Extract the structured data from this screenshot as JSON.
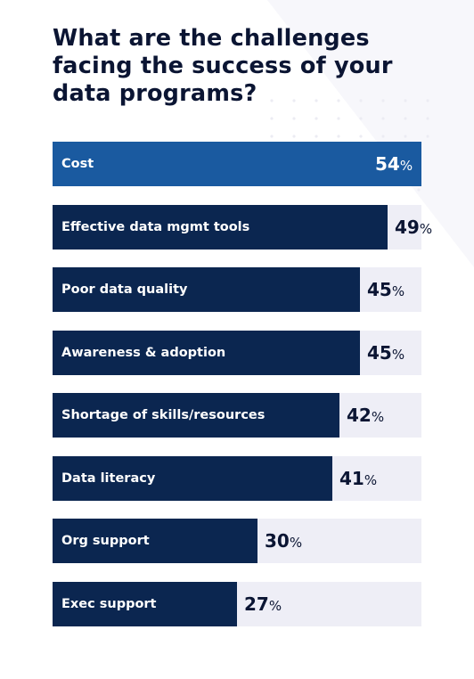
{
  "title": "What are the challenges facing the success of your data programs?",
  "colors": {
    "bar": "#0b2650",
    "highlight": "#1a5aa0",
    "track": "#eeeef6",
    "text": "#0b1533"
  },
  "chart_data": {
    "type": "bar",
    "orientation": "horizontal",
    "title": "What are the challenges facing the success of your data programs?",
    "unit": "%",
    "xlim": [
      0,
      54
    ],
    "categories": [
      "Cost",
      "Effective data mgmt tools",
      "Poor data quality",
      "Awareness & adoption",
      "Shortage of skills/resources",
      "Data literacy",
      "Org support",
      "Exec support"
    ],
    "values": [
      54,
      49,
      45,
      45,
      42,
      41,
      30,
      27
    ],
    "highlighted_category": "Cost"
  }
}
